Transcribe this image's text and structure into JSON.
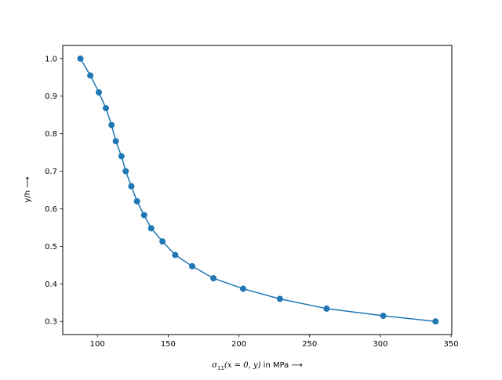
{
  "chart_data": {
    "type": "line",
    "title": "",
    "xlabel": {
      "symbol": "σ",
      "subscript": "11",
      "expression": "(x = 0, y)",
      "suffix": " in MPa ⟶"
    },
    "ylabel": "y/h ⟶",
    "xlim": [
      75.5,
      350.5
    ],
    "ylim": [
      0.265,
      1.035
    ],
    "xticks": [
      100,
      150,
      200,
      250,
      300,
      350
    ],
    "yticks": [
      0.3,
      0.4,
      0.5,
      0.6,
      0.7,
      0.8,
      0.9,
      1.0
    ],
    "xtick_labels": [
      "100",
      "150",
      "200",
      "250",
      "300",
      "350"
    ],
    "ytick_labels": [
      "0.3",
      "0.4",
      "0.5",
      "0.6",
      "0.7",
      "0.8",
      "0.9",
      "1.0"
    ],
    "grid": false,
    "legend": false,
    "marker": "circle",
    "series": [
      {
        "color": "#1f77b4",
        "x": [
          88,
          95,
          101,
          106,
          110,
          113,
          117,
          120,
          124,
          128,
          133,
          138,
          146,
          155,
          167,
          182,
          203,
          229,
          262,
          302,
          339
        ],
        "y": [
          1.0,
          0.955,
          0.91,
          0.868,
          0.823,
          0.78,
          0.74,
          0.7,
          0.66,
          0.62,
          0.583,
          0.548,
          0.513,
          0.477,
          0.447,
          0.415,
          0.387,
          0.36,
          0.334,
          0.315,
          0.3
        ]
      }
    ]
  }
}
